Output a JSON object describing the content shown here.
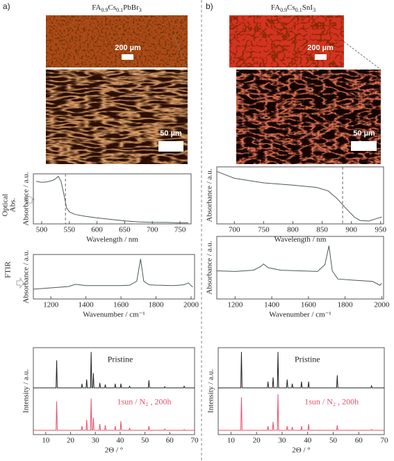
{
  "figure": {
    "panels": [
      "a)",
      "b)"
    ],
    "formulas": [
      [
        "FA",
        "0.9",
        "Cs",
        "0.1",
        "PbBr",
        "3"
      ],
      [
        "FA",
        "0.9",
        "Cs",
        "0.1",
        "SnI",
        "3"
      ]
    ],
    "scale_bars": [
      [
        "200 µm",
        "50 µm"
      ],
      [
        "200 µm",
        "50 µm"
      ]
    ],
    "side_labels": [
      [
        "Optical",
        "Abs."
      ],
      "FTIR"
    ]
  },
  "chart_data": [
    {
      "type": "line",
      "xlabel": "Wavelength / nm",
      "ylabel": "Absorbance / a.u.",
      "color": "#4a5858",
      "x": [
        490,
        500,
        510,
        520,
        525,
        530,
        535,
        540,
        545,
        550,
        560,
        580,
        600,
        625,
        650,
        675,
        700,
        725,
        750,
        765
      ],
      "values": [
        0.85,
        0.83,
        0.84,
        0.87,
        0.9,
        0.95,
        0.85,
        0.6,
        0.32,
        0.24,
        0.19,
        0.15,
        0.12,
        0.09,
        0.06,
        0.04,
        0.03,
        0.03,
        0.02,
        0.02
      ],
      "xlim": [
        485,
        770
      ],
      "ylim": [
        0,
        1
      ],
      "xticks": [
        500,
        550,
        600,
        650,
        700,
        750
      ],
      "vline": 543
    },
    {
      "type": "line",
      "xlabel": "Wavenumber / cm⁻¹",
      "ylabel": "Absorbance / a.u.",
      "color": "#4a5858",
      "x": [
        1100,
        1200,
        1300,
        1340,
        1360,
        1400,
        1500,
        1600,
        1650,
        1690,
        1712,
        1730,
        1760,
        1800,
        1900,
        1960,
        1985,
        2000,
        2010
      ],
      "values": [
        0.22,
        0.25,
        0.28,
        0.33,
        0.32,
        0.3,
        0.3,
        0.3,
        0.31,
        0.4,
        0.9,
        0.4,
        0.32,
        0.31,
        0.3,
        0.32,
        0.36,
        0.3,
        0.27
      ],
      "xlim": [
        1100,
        2020
      ],
      "ylim": [
        0,
        1
      ],
      "xticks": [
        1200,
        1400,
        1600,
        1800,
        2000
      ]
    },
    {
      "type": "line",
      "xlabel": "2Θ / °",
      "ylabel": "Intensity / a.u.",
      "x": [
        5,
        14.15,
        14.4,
        14.65,
        24.35,
        24.6,
        24.85,
        26.25,
        26.5,
        26.75,
        28.05,
        28.3,
        28.55,
        28.95,
        29.2,
        29.45,
        31.55,
        31.8,
        32.05,
        33.75,
        34,
        34.25,
        37.75,
        38,
        38.25,
        40.05,
        40.3,
        40.55,
        43.55,
        43.8,
        44.05,
        51.35,
        51.6,
        51.85,
        57.75,
        58,
        58.25,
        65.55,
        65.8,
        66.05,
        70
      ],
      "series": [
        {
          "name": "Pristine",
          "color": "#222222",
          "values": [
            1.1,
            1.1,
            1.75,
            1.1,
            1.1,
            1.2,
            1.1,
            1.1,
            1.3,
            1.1,
            1.1,
            1.95,
            1.1,
            1.1,
            1.45,
            1.1,
            1.1,
            1.22,
            1.1,
            1.1,
            1.18,
            1.1,
            1.1,
            1.2,
            1.1,
            1.1,
            1.2,
            1.1,
            1.1,
            1.14,
            1.1,
            1.1,
            1.28,
            1.1,
            1.1,
            1.13,
            1.1,
            1.1,
            1.14,
            1.1,
            1.1
          ]
        },
        {
          "name": "1sun / N₂ , 200h",
          "color": "#e8506a",
          "values": [
            0.1,
            0.1,
            0.78,
            0.1,
            0.1,
            0.2,
            0.1,
            0.1,
            0.35,
            0.1,
            0.1,
            0.85,
            0.1,
            0.1,
            0.4,
            0.1,
            0.1,
            0.25,
            0.1,
            0.1,
            0.22,
            0.1,
            0.1,
            0.2,
            0.1,
            0.1,
            0.32,
            0.1,
            0.1,
            0.15,
            0.1,
            0.1,
            0.2,
            0.1,
            0.1,
            0.13,
            0.1,
            0.1,
            0.12,
            0.1,
            0.1
          ]
        }
      ],
      "xlim": [
        5,
        70
      ],
      "ylim": [
        0,
        2.05
      ],
      "xticks": [
        10,
        20,
        30,
        40,
        50,
        60,
        70
      ]
    },
    {
      "type": "line",
      "xlabel": "Wavelength / nm",
      "ylabel": "Absorbance / a.u.",
      "color": "#4a5858",
      "x": [
        670,
        700,
        750,
        800,
        840,
        860,
        875,
        890,
        905,
        915,
        930,
        945,
        952
      ],
      "values": [
        0.92,
        0.8,
        0.72,
        0.68,
        0.64,
        0.58,
        0.45,
        0.28,
        0.12,
        0.06,
        0.05,
        0.1,
        0.12
      ],
      "xlim": [
        670,
        955
      ],
      "ylim": [
        0,
        1
      ],
      "xticks": [
        700,
        750,
        800,
        850,
        900,
        950
      ],
      "vline": 885
    },
    {
      "type": "line",
      "xlabel": "Wavenumber / cm⁻¹",
      "ylabel": "Absorbance / a.u.",
      "color": "#4a5858",
      "x": [
        1100,
        1200,
        1300,
        1340,
        1355,
        1380,
        1450,
        1550,
        1650,
        1690,
        1712,
        1730,
        1760,
        1850,
        1950,
        1990,
        2000
      ],
      "values": [
        0.45,
        0.44,
        0.46,
        0.52,
        0.56,
        0.5,
        0.46,
        0.45,
        0.44,
        0.55,
        0.85,
        0.45,
        0.32,
        0.3,
        0.28,
        0.22,
        0.25
      ],
      "xlim": [
        1100,
        2010
      ],
      "ylim": [
        0,
        1
      ],
      "xticks": [
        1200,
        1400,
        1600,
        1800,
        2000
      ]
    },
    {
      "type": "line",
      "xlabel": "2Θ / °",
      "ylabel": "Intensity / a.u.",
      "x": [
        5,
        13.85,
        14.1,
        14.35,
        24.25,
        24.5,
        24.75,
        26.25,
        26.5,
        26.75,
        28.15,
        28.4,
        28.65,
        31.75,
        32,
        32.25,
        33.75,
        34,
        34.25,
        37.35,
        37.6,
        37.85,
        40.15,
        40.4,
        40.65,
        51.35,
        51.6,
        51.85,
        64.75,
        65,
        65.25,
        70
      ],
      "series": [
        {
          "name": "Pristine",
          "color": "#222222",
          "values": [
            1.1,
            1.1,
            1.95,
            1.1,
            1.1,
            1.25,
            1.1,
            1.1,
            1.35,
            1.1,
            1.1,
            1.95,
            1.1,
            1.1,
            1.3,
            1.1,
            1.1,
            1.2,
            1.1,
            1.1,
            1.25,
            1.1,
            1.1,
            1.25,
            1.1,
            1.1,
            1.4,
            1.1,
            1.1,
            1.15,
            1.1,
            1.1
          ]
        },
        {
          "name": "1sun / N₂ , 200h",
          "color": "#e8506a",
          "values": [
            0.1,
            0.1,
            0.88,
            0.1,
            0.1,
            0.2,
            0.1,
            0.1,
            0.3,
            0.1,
            0.1,
            0.95,
            0.1,
            0.1,
            0.2,
            0.1,
            0.1,
            0.18,
            0.1,
            0.1,
            0.2,
            0.1,
            0.1,
            0.25,
            0.1,
            0.1,
            0.22,
            0.1,
            0.1,
            0.12,
            0.1,
            0.1
          ]
        }
      ],
      "xlim": [
        5,
        70
      ],
      "ylim": [
        0,
        2.05
      ],
      "xticks": [
        10,
        20,
        30,
        40,
        50,
        60,
        70
      ]
    }
  ]
}
